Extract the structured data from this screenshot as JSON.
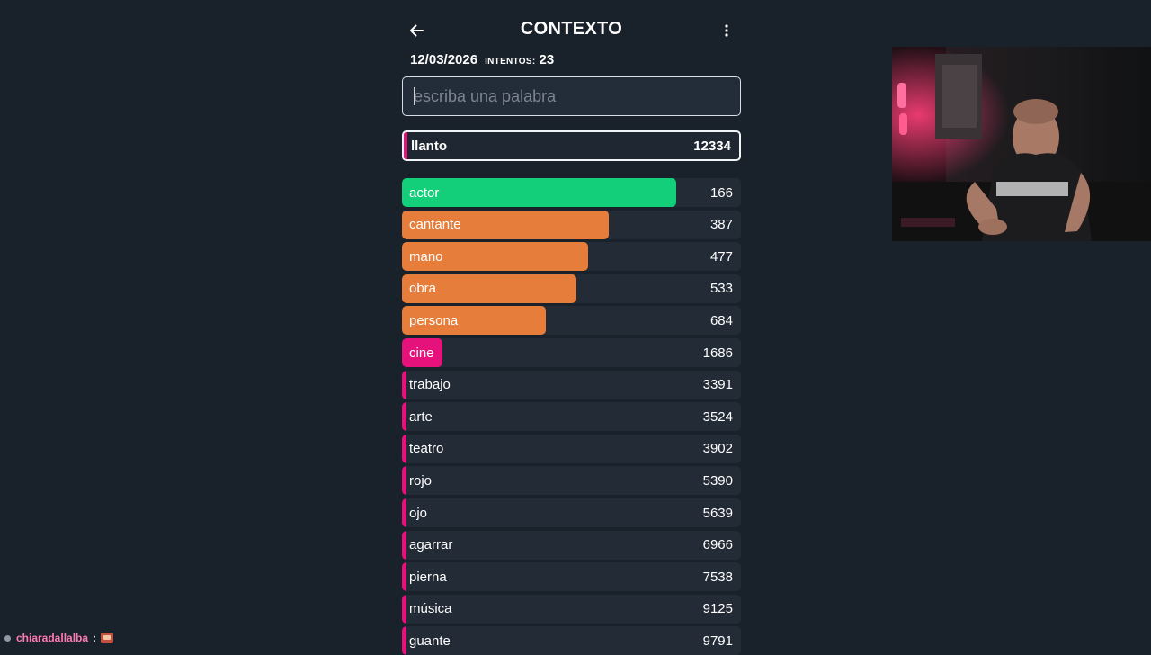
{
  "header": {
    "title": "CONTEXTO",
    "back_icon": "arrow-left-icon",
    "menu_icon": "kebab-menu-icon"
  },
  "info": {
    "date": "12/03/2026",
    "tries_label": "INTENTOS:",
    "tries_value": "23"
  },
  "search": {
    "placeholder": "escriba una palabra",
    "value": ""
  },
  "last_guess": {
    "word": "llanto",
    "rank": "12334",
    "color": "#e6127b"
  },
  "colors": {
    "green": "#14cf79",
    "orange": "#e77d3a",
    "pink": "#e6127b"
  },
  "guesses": [
    {
      "word": "actor",
      "rank": "166",
      "color": "#14cf79",
      "fill": 0.81
    },
    {
      "word": "cantante",
      "rank": "387",
      "color": "#e77d3a",
      "fill": 0.61
    },
    {
      "word": "mano",
      "rank": "477",
      "color": "#e77d3a",
      "fill": 0.55
    },
    {
      "word": "obra",
      "rank": "533",
      "color": "#e77d3a",
      "fill": 0.515
    },
    {
      "word": "persona",
      "rank": "684",
      "color": "#e77d3a",
      "fill": 0.425
    },
    {
      "word": "cine",
      "rank": "1686",
      "color": "#e6127b",
      "fill": 0.12
    },
    {
      "word": "trabajo",
      "rank": "3391",
      "color": "#e6127b",
      "fill": 0.012
    },
    {
      "word": "arte",
      "rank": "3524",
      "color": "#e6127b",
      "fill": 0.012
    },
    {
      "word": "teatro",
      "rank": "3902",
      "color": "#e6127b",
      "fill": 0.012
    },
    {
      "word": "rojo",
      "rank": "5390",
      "color": "#e6127b",
      "fill": 0.012
    },
    {
      "word": "ojo",
      "rank": "5639",
      "color": "#e6127b",
      "fill": 0.012
    },
    {
      "word": "agarrar",
      "rank": "6966",
      "color": "#e6127b",
      "fill": 0.012
    },
    {
      "word": "pierna",
      "rank": "7538",
      "color": "#e6127b",
      "fill": 0.012
    },
    {
      "word": "música",
      "rank": "9125",
      "color": "#e6127b",
      "fill": 0.012
    },
    {
      "word": "guante",
      "rank": "9791",
      "color": "#e6127b",
      "fill": 0.012
    }
  ],
  "chat": {
    "badge_icon": "chat-badge-icon",
    "username": "chiaradallalba",
    "separator": ":",
    "emote_icon": "emote-icon"
  }
}
